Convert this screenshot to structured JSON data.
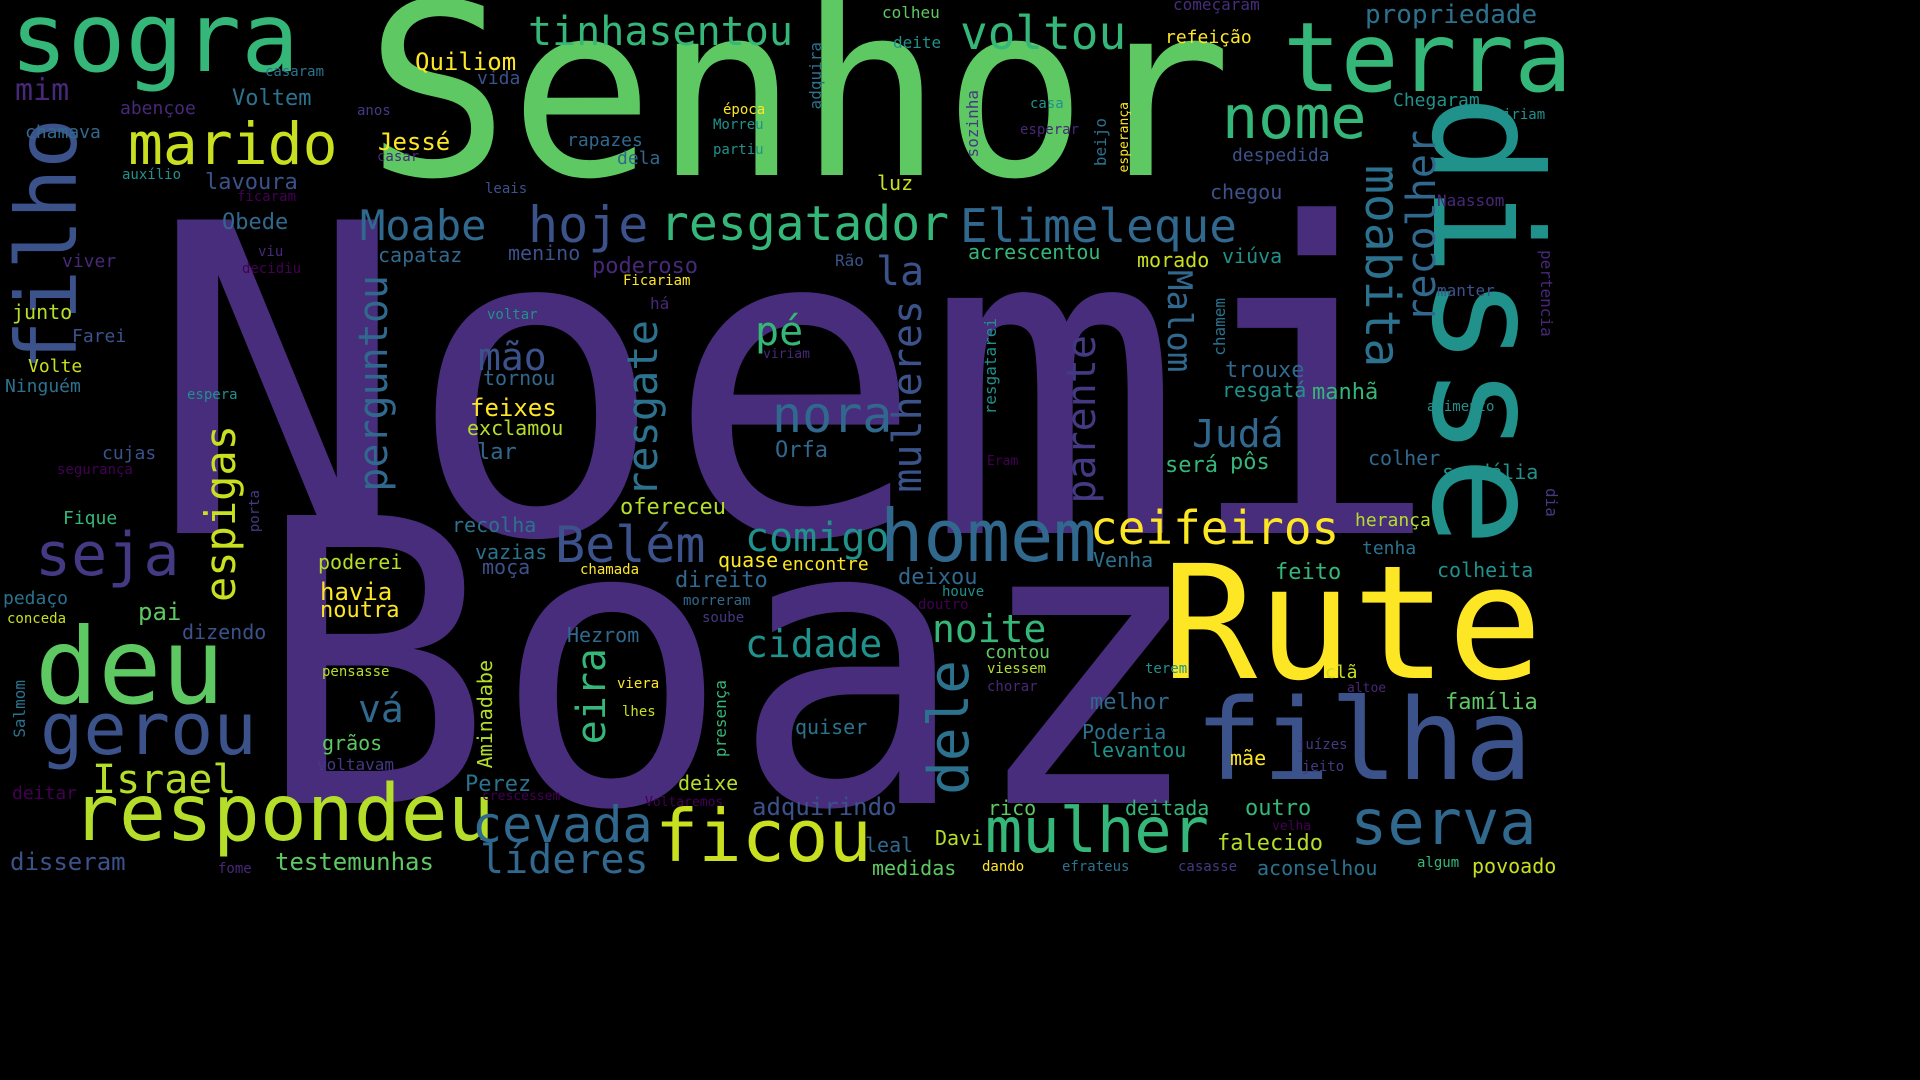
{
  "words": [
    {
      "text": "Noemi",
      "color": "#472d7b"
    },
    {
      "text": "Boaz",
      "color": "#472d7b"
    },
    {
      "text": "Senhor",
      "color": "#5ec962"
    },
    {
      "text": "Rute",
      "color": "#fde725"
    },
    {
      "text": "disse",
      "color": "#21918c"
    },
    {
      "text": "filha",
      "color": "#3b528b"
    },
    {
      "text": "sogra",
      "color": "#35b779"
    },
    {
      "text": "terra",
      "color": "#35b779"
    },
    {
      "text": "filho",
      "color": "#3b528b"
    },
    {
      "text": "deu",
      "color": "#5ec962"
    },
    {
      "text": "homem",
      "color": "#31688e"
    },
    {
      "text": "respondeu",
      "color": "#b5de2b"
    },
    {
      "text": "mulher",
      "color": "#35b779"
    },
    {
      "text": "ficou",
      "color": "#c8e020"
    },
    {
      "text": "gerou",
      "color": "#3b528b"
    },
    {
      "text": "serva",
      "color": "#31688e"
    },
    {
      "text": "nome",
      "color": "#35b779"
    },
    {
      "text": "marido",
      "color": "#c8e020"
    },
    {
      "text": "seja",
      "color": "#443983"
    },
    {
      "text": "resgatador",
      "color": "#35b779"
    },
    {
      "text": "Elimeleque",
      "color": "#31688e"
    },
    {
      "text": "dele",
      "color": "#2c728e"
    },
    {
      "text": "ceifeiros",
      "color": "#fde725"
    },
    {
      "text": "moabita",
      "color": "#2c728e"
    },
    {
      "text": "nora",
      "color": "#31688e"
    },
    {
      "text": "voltou",
      "color": "#35b779"
    },
    {
      "text": "tinhasentou",
      "color": "#35b779"
    },
    {
      "text": "Moabe",
      "color": "#31688e"
    },
    {
      "text": "hoje",
      "color": "#3b528b"
    },
    {
      "text": "cevada",
      "color": "#31688e"
    },
    {
      "text": "Israel",
      "color": "#b5de2b"
    },
    {
      "text": "Belém",
      "color": "#3b528b"
    },
    {
      "text": "espigas",
      "color": "#c8e020"
    },
    {
      "text": "mulheres",
      "color": "#3b528b"
    },
    {
      "text": "perguntou",
      "color": "#31688e"
    },
    {
      "text": "resgate",
      "color": "#2c728e"
    },
    {
      "text": "recolher",
      "color": "#31688e"
    },
    {
      "text": "parente",
      "color": "#443983"
    },
    {
      "text": "comigo",
      "color": "#21918c"
    },
    {
      "text": "líderes",
      "color": "#31688e"
    },
    {
      "text": "cidade",
      "color": "#21918c"
    },
    {
      "text": "noite",
      "color": "#35b779"
    },
    {
      "text": "Judá",
      "color": "#31688e"
    },
    {
      "text": "pé",
      "color": "#35b779"
    },
    {
      "text": "mão",
      "color": "#3b528b"
    },
    {
      "text": "vá",
      "color": "#31688e"
    },
    {
      "text": "eira",
      "color": "#35b779"
    },
    {
      "text": "Malom",
      "color": "#31688e"
    },
    {
      "text": "la",
      "color": "#3b528b"
    },
    {
      "text": "propriedade",
      "color": "#2c728e"
    },
    {
      "text": "Quiliom",
      "color": "#fde725"
    },
    {
      "text": "Jessé",
      "color": "#fde725"
    },
    {
      "text": "mim",
      "color": "#482878"
    },
    {
      "text": "Voltem",
      "color": "#2c728e"
    },
    {
      "text": "lavoura",
      "color": "#3b528b"
    },
    {
      "text": "Obede",
      "color": "#31688e"
    },
    {
      "text": "feixes",
      "color": "#fde725"
    },
    {
      "text": "exclamou",
      "color": "#b5de2b"
    },
    {
      "text": "tornou",
      "color": "#31688e"
    },
    {
      "text": "lar",
      "color": "#31688e"
    },
    {
      "text": "Orfa",
      "color": "#31688e"
    },
    {
      "text": "ofereceu",
      "color": "#b5de2b"
    },
    {
      "text": "recolha",
      "color": "#2c728e"
    },
    {
      "text": "vazias",
      "color": "#2c728e"
    },
    {
      "text": "moça",
      "color": "#3b528b"
    },
    {
      "text": "havia",
      "color": "#fde725"
    },
    {
      "text": "noutra",
      "color": "#fde725"
    },
    {
      "text": "poderei",
      "color": "#b5de2b"
    },
    {
      "text": "pai",
      "color": "#5ec962"
    },
    {
      "text": "dizendo",
      "color": "#3b528b"
    },
    {
      "text": "Hezrom",
      "color": "#31688e"
    },
    {
      "text": "Aminadabe",
      "color": "#b5de2b"
    },
    {
      "text": "Perez",
      "color": "#2c728e"
    },
    {
      "text": "grãos",
      "color": "#5ec962"
    },
    {
      "text": "testemunhas",
      "color": "#5ec962"
    },
    {
      "text": "disseram",
      "color": "#3b528b"
    },
    {
      "text": "adquirindo",
      "color": "#3b528b"
    },
    {
      "text": "deixe",
      "color": "#b5de2b"
    },
    {
      "text": "direito",
      "color": "#31688e"
    },
    {
      "text": "quase",
      "color": "#fde725"
    },
    {
      "text": "encontre",
      "color": "#fde725"
    },
    {
      "text": "deixou",
      "color": "#31688e"
    },
    {
      "text": "capataz",
      "color": "#31688e"
    },
    {
      "text": "menino",
      "color": "#3b528b"
    },
    {
      "text": "poderoso",
      "color": "#482878"
    },
    {
      "text": "acrescentou",
      "color": "#35b779"
    },
    {
      "text": "morado",
      "color": "#c8e020"
    },
    {
      "text": "viúva",
      "color": "#21918c"
    },
    {
      "text": "trouxe",
      "color": "#31688e"
    },
    {
      "text": "resgatá",
      "color": "#21918c"
    },
    {
      "text": "manhã",
      "color": "#35b779"
    },
    {
      "text": "será",
      "color": "#35b779"
    },
    {
      "text": "pôs",
      "color": "#35b779"
    },
    {
      "text": "colher",
      "color": "#31688e"
    },
    {
      "text": "sandália",
      "color": "#21918c"
    },
    {
      "text": "herança",
      "color": "#b5de2b"
    },
    {
      "text": "tenha",
      "color": "#2c728e"
    },
    {
      "text": "colheita",
      "color": "#21918c"
    },
    {
      "text": "feito",
      "color": "#35b779"
    },
    {
      "text": "Venha",
      "color": "#2c728e"
    },
    {
      "text": "família",
      "color": "#5ec962"
    },
    {
      "text": "melhor",
      "color": "#31688e"
    },
    {
      "text": "Poderia",
      "color": "#2c728e"
    },
    {
      "text": "levantou",
      "color": "#21918c"
    },
    {
      "text": "mãe",
      "color": "#fde725"
    },
    {
      "text": "outro",
      "color": "#35b779"
    },
    {
      "text": "falecido",
      "color": "#b5de2b"
    },
    {
      "text": "deitada",
      "color": "#35b779"
    },
    {
      "text": "aconselhou",
      "color": "#2c728e"
    },
    {
      "text": "povoado",
      "color": "#c8e020"
    },
    {
      "text": "rico",
      "color": "#5ec962"
    },
    {
      "text": "Davi",
      "color": "#b5de2b"
    },
    {
      "text": "medidas",
      "color": "#5ec962"
    },
    {
      "text": "leal",
      "color": "#31688e"
    },
    {
      "text": "quiser",
      "color": "#2c728e"
    },
    {
      "text": "contou",
      "color": "#5ec962"
    },
    {
      "text": "clã",
      "color": "#c8e020"
    },
    {
      "text": "luz",
      "color": "#c8e020"
    },
    {
      "text": "chegou",
      "color": "#3b528b"
    },
    {
      "text": "despedida",
      "color": "#3b528b"
    },
    {
      "text": "Chegaram",
      "color": "#21918c"
    },
    {
      "text": "refeição",
      "color": "#fde725"
    },
    {
      "text": "colheu",
      "color": "#5ec962"
    },
    {
      "text": "deite",
      "color": "#21918c"
    },
    {
      "text": "começaram",
      "color": "#472d7b"
    },
    {
      "text": "adquira",
      "color": "#2c728e"
    },
    {
      "text": "época",
      "color": "#fde725"
    },
    {
      "text": "Morreu",
      "color": "#21918c"
    },
    {
      "text": "partiu",
      "color": "#21918c"
    },
    {
      "text": "rapazes",
      "color": "#31688e"
    },
    {
      "text": "dela",
      "color": "#31688e"
    },
    {
      "text": "vida",
      "color": "#3b528b"
    },
    {
      "text": "casaram",
      "color": "#2c728e"
    },
    {
      "text": "abençoe",
      "color": "#482878"
    },
    {
      "text": "anos",
      "color": "#443983"
    },
    {
      "text": "chamava",
      "color": "#31688e"
    },
    {
      "text": "casar",
      "color": "#482878"
    },
    {
      "text": "auxílio",
      "color": "#21918c"
    },
    {
      "text": "ficaram",
      "color": "#440154"
    },
    {
      "text": "leais",
      "color": "#3b528b"
    },
    {
      "text": "casa",
      "color": "#21918c"
    },
    {
      "text": "esperar",
      "color": "#482878"
    },
    {
      "text": "sozinha",
      "color": "#443983"
    },
    {
      "text": "beijo",
      "color": "#2c728e"
    },
    {
      "text": "esperança",
      "color": "#fde725"
    },
    {
      "text": "iriam",
      "color": "#21918c"
    },
    {
      "text": "Naassom",
      "color": "#482878"
    },
    {
      "text": "manter",
      "color": "#3b528b"
    },
    {
      "text": "pertencia",
      "color": "#482878"
    },
    {
      "text": "alimento",
      "color": "#21918c"
    },
    {
      "text": "dia",
      "color": "#443983"
    },
    {
      "text": "viver",
      "color": "#482878"
    },
    {
      "text": "viu",
      "color": "#482878"
    },
    {
      "text": "decidiu",
      "color": "#440154"
    },
    {
      "text": "junto",
      "color": "#b5de2b"
    },
    {
      "text": "Farei",
      "color": "#3b528b"
    },
    {
      "text": "Volte",
      "color": "#c8e020"
    },
    {
      "text": "Ninguém",
      "color": "#2c728e"
    },
    {
      "text": "espera",
      "color": "#21918c"
    },
    {
      "text": "cujas",
      "color": "#3b528b"
    },
    {
      "text": "segurança",
      "color": "#440154"
    },
    {
      "text": "Fique",
      "color": "#35b779"
    },
    {
      "text": "porta",
      "color": "#443983"
    },
    {
      "text": "pedaço",
      "color": "#2c728e"
    },
    {
      "text": "conceda",
      "color": "#c8e020"
    },
    {
      "text": "Salmom",
      "color": "#2c728e"
    },
    {
      "text": "deitar",
      "color": "#440154"
    },
    {
      "text": "fome",
      "color": "#482878"
    },
    {
      "text": "voltavam",
      "color": "#443983"
    },
    {
      "text": "crescessem",
      "color": "#440154"
    },
    {
      "text": "Voltaremos",
      "color": "#440154"
    },
    {
      "text": "dando",
      "color": "#fde725"
    },
    {
      "text": "efrateus",
      "color": "#2c728e"
    },
    {
      "text": "casasse",
      "color": "#443983"
    },
    {
      "text": "algum",
      "color": "#35b779"
    },
    {
      "text": "velha",
      "color": "#440154"
    },
    {
      "text": "juízes",
      "color": "#443983"
    },
    {
      "text": "jeito",
      "color": "#443983"
    },
    {
      "text": "altoe",
      "color": "#482878"
    },
    {
      "text": "terem",
      "color": "#21918c"
    },
    {
      "text": "chorar",
      "color": "#482878"
    },
    {
      "text": "viessem",
      "color": "#b5de2b"
    },
    {
      "text": "doutro",
      "color": "#440154"
    },
    {
      "text": "houve",
      "color": "#21918c"
    },
    {
      "text": "morreram",
      "color": "#31688e"
    },
    {
      "text": "soube",
      "color": "#443983"
    },
    {
      "text": "viera",
      "color": "#fde725"
    },
    {
      "text": "lhes",
      "color": "#c8e020"
    },
    {
      "text": "presença",
      "color": "#35b779"
    },
    {
      "text": "chamada",
      "color": "#fde725"
    },
    {
      "text": "pensasse",
      "color": "#b5de2b"
    },
    {
      "text": "resgatarei",
      "color": "#21918c"
    },
    {
      "text": "chamem",
      "color": "#2c728e"
    },
    {
      "text": "Eram",
      "color": "#440154"
    },
    {
      "text": "Ficariam",
      "color": "#fde725"
    },
    {
      "text": "há",
      "color": "#482878"
    },
    {
      "text": "Rão",
      "color": "#3b528b"
    },
    {
      "text": "voltar",
      "color": "#21918c"
    },
    {
      "text": "viriam",
      "color": "#482878"
    }
  ]
}
